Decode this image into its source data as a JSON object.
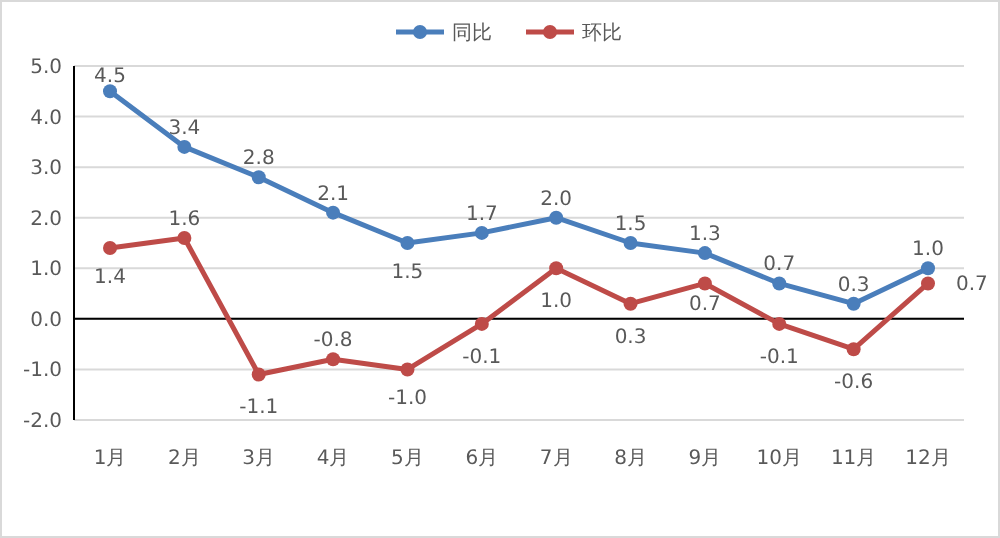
{
  "chart_data": {
    "type": "line",
    "categories": [
      "1月",
      "2月",
      "3月",
      "4月",
      "5月",
      "6月",
      "7月",
      "8月",
      "9月",
      "10月",
      "11月",
      "12月"
    ],
    "series": [
      {
        "name": "同比",
        "color": "#4a7ebb",
        "values": [
          4.5,
          3.4,
          2.8,
          2.1,
          1.5,
          1.7,
          2.0,
          1.5,
          1.3,
          0.7,
          0.3,
          1.0
        ],
        "value_labels": [
          "4.5",
          "3.4",
          "2.8",
          "2.1",
          "1.5",
          "1.7",
          "2.0",
          "1.5",
          "1.3",
          "0.7",
          "0.3",
          "1.0"
        ]
      },
      {
        "name": "环比",
        "color": "#be4b48",
        "values": [
          1.4,
          1.6,
          -1.1,
          -0.8,
          -1.0,
          -0.1,
          1.0,
          0.3,
          0.7,
          -0.1,
          -0.6,
          0.7
        ],
        "value_labels": [
          "1.4",
          "1.6",
          "-1.1",
          "-0.8",
          "-1.0",
          "-0.1",
          "1.0",
          "0.3",
          "0.7",
          "-0.1",
          "-0.6",
          "0.7"
        ]
      }
    ],
    "ylim": [
      -2,
      5
    ],
    "yticks": [
      {
        "value": -2,
        "label": "-2.0"
      },
      {
        "value": -1,
        "label": "-1.0"
      },
      {
        "value": 0,
        "label": "0.0"
      },
      {
        "value": 1,
        "label": "1.0"
      },
      {
        "value": 2,
        "label": "2.0"
      },
      {
        "value": 3,
        "label": "3.0"
      },
      {
        "value": 4,
        "label": "4.0"
      },
      {
        "value": 5,
        "label": "5.0"
      }
    ],
    "grid": "y",
    "legend": "top",
    "marker": "circle",
    "line_style": "solid"
  }
}
